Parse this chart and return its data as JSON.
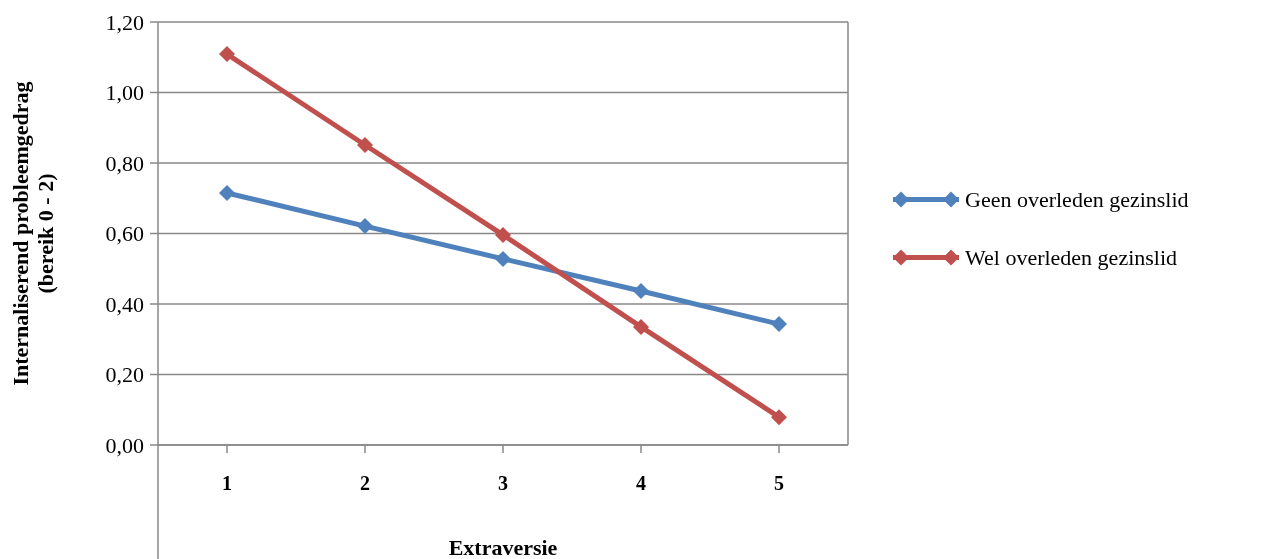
{
  "chart_data": {
    "type": "line",
    "xlabel": "Extraversie",
    "ylabel": "Internaliserend probleemgedrag\n(bereik 0 - 2)",
    "categories": [
      "1",
      "2",
      "3",
      "4",
      "5"
    ],
    "series": [
      {
        "name": "Geen overleden gezinslid",
        "color": "#4f81bd",
        "values": [
          0.715,
          0.621,
          0.528,
          0.437,
          0.343
        ]
      },
      {
        "name": "Wel overleden gezinslid",
        "color": "#c0504d",
        "values": [
          1.109,
          0.851,
          0.596,
          0.335,
          0.079
        ]
      }
    ],
    "ylim": [
      0,
      1.2
    ],
    "yticks": [
      {
        "value": 0,
        "label": "0,00"
      },
      {
        "value": 0.2,
        "label": "0,20"
      },
      {
        "value": 0.4,
        "label": "0,40"
      },
      {
        "value": 0.6,
        "label": "0,60"
      },
      {
        "value": 0.8,
        "label": "0,80"
      },
      {
        "value": 1.0,
        "label": "1,00"
      },
      {
        "value": 1.2,
        "label": "1,20"
      }
    ],
    "grid": "y",
    "legend": "right",
    "marker": "diamond",
    "line_style": "solid"
  }
}
